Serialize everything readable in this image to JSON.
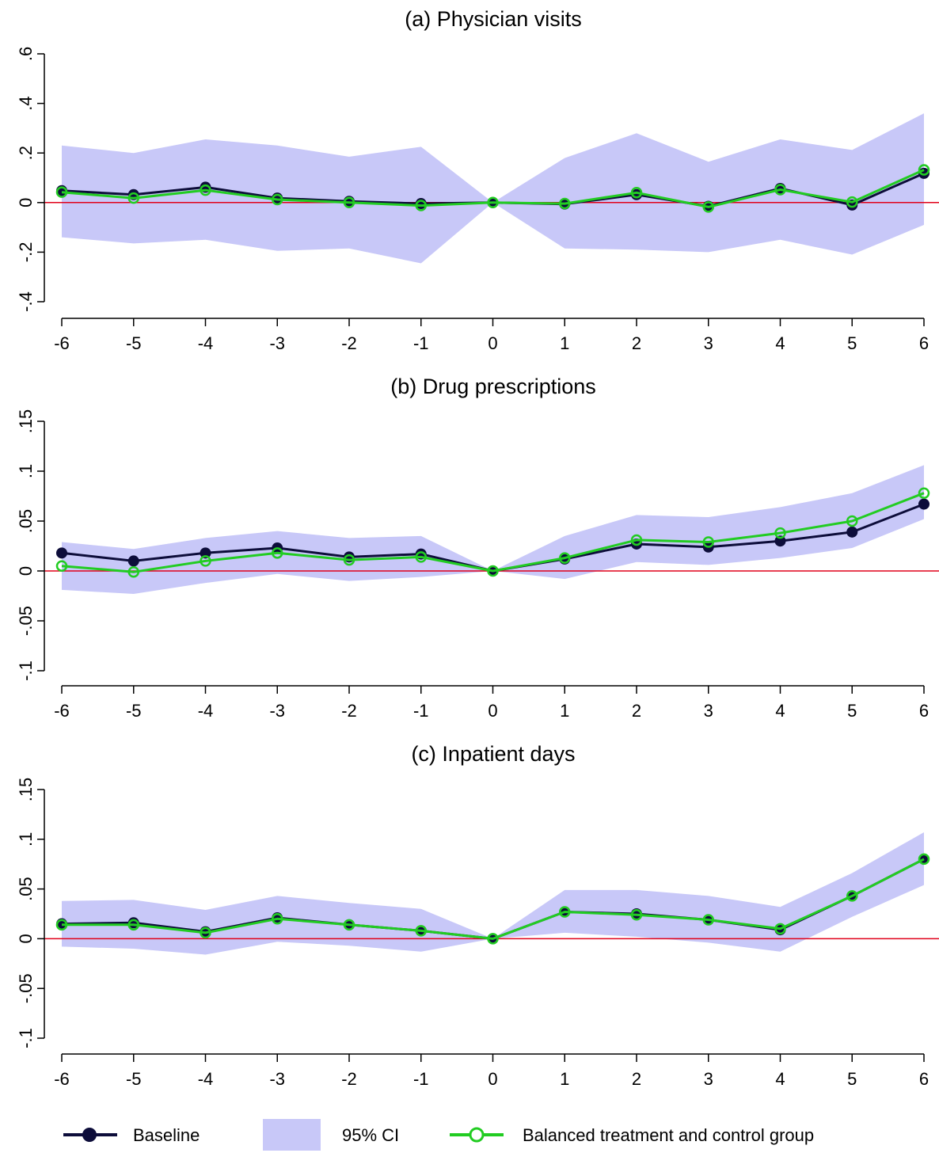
{
  "colors": {
    "baseline": "#0d0d3a",
    "balanced": "#22cc22",
    "ci_fill": "#c8c8f8",
    "zero_line": "#e0001a"
  },
  "legend": {
    "baseline": "Baseline",
    "ci": "95% CI",
    "balanced": "Balanced treatment and control group"
  },
  "chart_data": [
    {
      "type": "line",
      "title": "(a) Physician visits",
      "x": [
        -6,
        -5,
        -4,
        -3,
        -2,
        -1,
        0,
        1,
        2,
        3,
        4,
        5,
        6
      ],
      "xticks": [
        "-6",
        "-5",
        "-4",
        "-3",
        "-2",
        "-1",
        "0",
        "1",
        "2",
        "3",
        "4",
        "5",
        "6"
      ],
      "ylim": [
        -0.4,
        0.6
      ],
      "yticks": [
        -0.4,
        -0.2,
        0,
        0.2,
        0.4,
        0.6
      ],
      "yticklabels": [
        "-.4",
        "-.2",
        "0",
        ".2",
        ".4",
        ".6"
      ],
      "series": [
        {
          "name": "Baseline",
          "values": [
            0.048,
            0.032,
            0.062,
            0.018,
            0.005,
            -0.004,
            0,
            -0.006,
            0.032,
            -0.015,
            0.057,
            -0.01,
            0.118
          ]
        },
        {
          "name": "Balanced treatment and control group",
          "values": [
            0.042,
            0.018,
            0.05,
            0.012,
            0.0,
            -0.012,
            0,
            -0.004,
            0.04,
            -0.018,
            0.052,
            0.002,
            0.132
          ]
        }
      ],
      "ci": {
        "name": "95% CI",
        "lower": [
          -0.14,
          -0.165,
          -0.15,
          -0.195,
          -0.185,
          -0.245,
          0,
          -0.185,
          -0.19,
          -0.2,
          -0.15,
          -0.21,
          -0.09
        ],
        "upper": [
          0.23,
          0.2,
          0.255,
          0.23,
          0.185,
          0.225,
          0,
          0.18,
          0.28,
          0.165,
          0.255,
          0.212,
          0.36
        ]
      }
    },
    {
      "type": "line",
      "title": "(b) Drug prescriptions",
      "x": [
        -6,
        -5,
        -4,
        -3,
        -2,
        -1,
        0,
        1,
        2,
        3,
        4,
        5,
        6
      ],
      "xticks": [
        "-6",
        "-5",
        "-4",
        "-3",
        "-2",
        "-1",
        "0",
        "1",
        "2",
        "3",
        "4",
        "5",
        "6"
      ],
      "ylim": [
        -0.1,
        0.15
      ],
      "yticks": [
        -0.1,
        -0.05,
        0,
        0.05,
        0.1,
        0.15
      ],
      "yticklabels": [
        "-.1",
        "-.05",
        "0",
        ".05",
        ".1",
        ".15"
      ],
      "series": [
        {
          "name": "Baseline",
          "values": [
            0.018,
            0.01,
            0.018,
            0.023,
            0.014,
            0.017,
            0,
            0.012,
            0.027,
            0.024,
            0.03,
            0.039,
            0.067
          ]
        },
        {
          "name": "Balanced treatment and control group",
          "values": [
            0.005,
            -0.001,
            0.01,
            0.018,
            0.011,
            0.014,
            0,
            0.013,
            0.031,
            0.029,
            0.038,
            0.05,
            0.078
          ]
        }
      ],
      "ci": {
        "name": "95% CI",
        "lower": [
          -0.019,
          -0.023,
          -0.012,
          -0.003,
          -0.01,
          -0.006,
          0,
          -0.008,
          0.009,
          0.006,
          0.013,
          0.023,
          0.052
        ],
        "upper": [
          0.029,
          0.022,
          0.033,
          0.04,
          0.033,
          0.035,
          0,
          0.035,
          0.056,
          0.054,
          0.064,
          0.078,
          0.106
        ]
      }
    },
    {
      "type": "line",
      "title": "(c) Inpatient days",
      "x": [
        -6,
        -5,
        -4,
        -3,
        -2,
        -1,
        0,
        1,
        2,
        3,
        4,
        5,
        6
      ],
      "xticks": [
        "-6",
        "-5",
        "-4",
        "-3",
        "-2",
        "-1",
        "0",
        "1",
        "2",
        "3",
        "4",
        "5",
        "6"
      ],
      "ylim": [
        -0.1,
        0.15
      ],
      "yticks": [
        -0.1,
        -0.05,
        0,
        0.05,
        0.1,
        0.15
      ],
      "yticklabels": [
        "-.1",
        "-.05",
        "0",
        ".05",
        ".1",
        ".15"
      ],
      "series": [
        {
          "name": "Baseline",
          "values": [
            0.015,
            0.016,
            0.007,
            0.021,
            0.014,
            0.008,
            0,
            0.027,
            0.025,
            0.019,
            0.009,
            0.043,
            0.08
          ]
        },
        {
          "name": "Balanced treatment and control group",
          "values": [
            0.014,
            0.014,
            0.006,
            0.02,
            0.014,
            0.008,
            0,
            0.027,
            0.024,
            0.019,
            0.01,
            0.043,
            0.08
          ]
        }
      ],
      "ci": {
        "name": "95% CI",
        "lower": [
          -0.008,
          -0.01,
          -0.016,
          -0.003,
          -0.007,
          -0.013,
          0,
          0.006,
          0.002,
          -0.004,
          -0.013,
          0.022,
          0.054
        ],
        "upper": [
          0.038,
          0.039,
          0.029,
          0.043,
          0.036,
          0.03,
          0,
          0.049,
          0.049,
          0.043,
          0.032,
          0.066,
          0.107
        ]
      }
    }
  ]
}
